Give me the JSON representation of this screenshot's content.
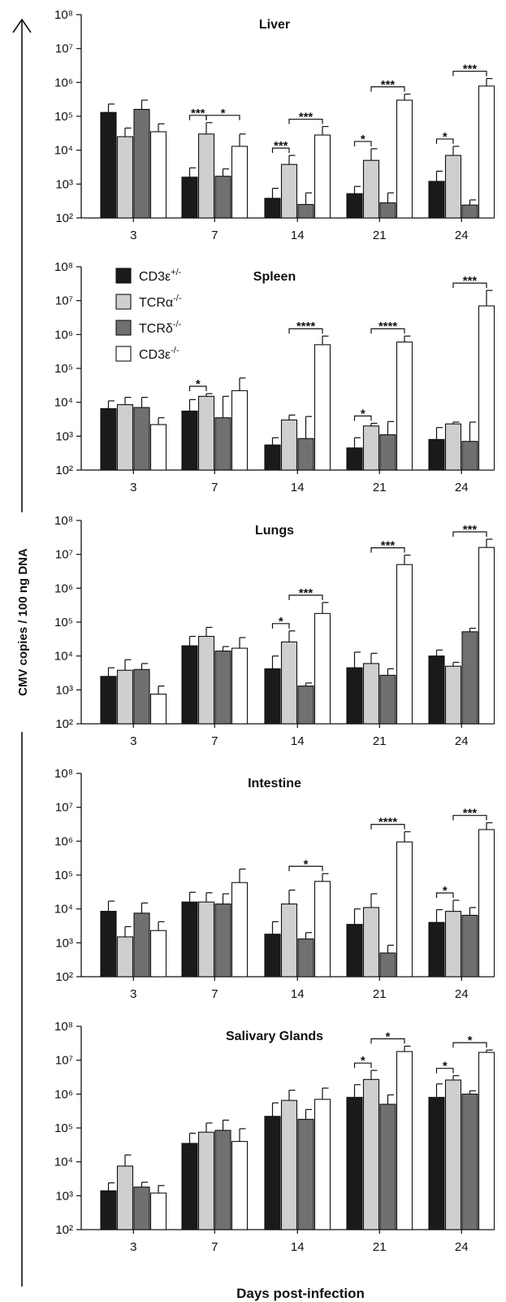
{
  "figure": {
    "ylabel": "CMV copies / 100 ng DNA",
    "xlabel": "Days post-infection"
  },
  "legend": [
    {
      "label": "CD3ε",
      "sup": "+/-",
      "color": "#1a1a1a"
    },
    {
      "label": "TCRα",
      "sup": "-/-",
      "color": "#cfcfcf"
    },
    {
      "label": "TCRδ",
      "sup": "-/-",
      "color": "#707070"
    },
    {
      "label": "CD3ε",
      "sup": "-/-",
      "color": "#ffffff"
    }
  ],
  "chart_data": [
    {
      "type": "bar",
      "title": "Liver",
      "log_scale": true,
      "ylim": [
        100,
        100000000
      ],
      "y_ticks": [
        "10²",
        "10³",
        "10⁴",
        "10⁵",
        "10⁶",
        "10⁷",
        "10⁸"
      ],
      "categories": [
        "3",
        "7",
        "14",
        "21",
        "24"
      ],
      "series": [
        {
          "name": "CD3ε+/-",
          "values": [
            130000,
            1600,
            380,
            520,
            1200
          ],
          "errors": [
            230000,
            3000,
            750,
            850,
            2400
          ]
        },
        {
          "name": "TCRα-/-",
          "values": [
            25000,
            30000,
            3800,
            5000,
            7000
          ],
          "errors": [
            45000,
            65000,
            7000,
            11000,
            13000
          ]
        },
        {
          "name": "TCRδ-/-",
          "values": [
            160000,
            1700,
            250,
            280,
            240
          ],
          "errors": [
            300000,
            2800,
            550,
            550,
            340
          ]
        },
        {
          "name": "CD3ε-/-",
          "values": [
            35000,
            13000,
            28000,
            300000,
            780000
          ],
          "errors": [
            60000,
            30000,
            50000,
            450000,
            1300000
          ]
        }
      ],
      "significance": [
        {
          "day": "7",
          "from": "CD3ε+/-",
          "to": "TCRα-/-",
          "label": "***"
        },
        {
          "day": "7",
          "from": "TCRα-/-",
          "to": "CD3ε-/-",
          "label": "*"
        },
        {
          "day": "14",
          "from": "CD3ε+/-",
          "to": "TCRα-/-",
          "label": "***"
        },
        {
          "day": "14",
          "from": "TCRα-/-",
          "to": "CD3ε-/-",
          "label": "***"
        },
        {
          "day": "21",
          "from": "CD3ε+/-",
          "to": "TCRα-/-",
          "label": "*"
        },
        {
          "day": "21",
          "from": "TCRα-/-",
          "to": "CD3ε-/-",
          "label": "***"
        },
        {
          "day": "24",
          "from": "CD3ε+/-",
          "to": "TCRα-/-",
          "label": "*"
        },
        {
          "day": "24",
          "from": "TCRα-/-",
          "to": "CD3ε-/-",
          "label": "***"
        }
      ]
    },
    {
      "type": "bar",
      "title": "Spleen",
      "log_scale": true,
      "ylim": [
        100,
        100000000
      ],
      "y_ticks": [
        "10²",
        "10³",
        "10⁴",
        "10⁵",
        "10⁶",
        "10⁷",
        "10⁸"
      ],
      "categories": [
        "3",
        "7",
        "14",
        "21",
        "24"
      ],
      "series": [
        {
          "name": "CD3ε+/-",
          "values": [
            6500,
            5500,
            550,
            450,
            800
          ],
          "errors": [
            11000,
            12000,
            900,
            900,
            1800
          ]
        },
        {
          "name": "TCRα-/-",
          "values": [
            8500,
            15000,
            3000,
            2000,
            2300
          ],
          "errors": [
            14000,
            18000,
            4200,
            2400,
            2600
          ]
        },
        {
          "name": "TCRδ-/-",
          "values": [
            7000,
            3500,
            850,
            1100,
            700
          ],
          "errors": [
            14000,
            15000,
            3800,
            2700,
            2600
          ]
        },
        {
          "name": "CD3ε-/-",
          "values": [
            2200,
            22000,
            500000,
            600000,
            7000000
          ],
          "errors": [
            3500,
            52000,
            900000,
            900000,
            20000000
          ]
        }
      ],
      "significance": [
        {
          "day": "7",
          "from": "CD3ε+/-",
          "to": "TCRα-/-",
          "label": "*"
        },
        {
          "day": "14",
          "from": "TCRα-/-",
          "to": "CD3ε-/-",
          "label": "****"
        },
        {
          "day": "21",
          "from": "CD3ε+/-",
          "to": "TCRα-/-",
          "label": "*"
        },
        {
          "day": "21",
          "from": "TCRα-/-",
          "to": "CD3ε-/-",
          "label": "****"
        },
        {
          "day": "24",
          "from": "TCRα-/-",
          "to": "CD3ε-/-",
          "label": "***"
        }
      ]
    },
    {
      "type": "bar",
      "title": "Lungs",
      "log_scale": true,
      "ylim": [
        100,
        100000000
      ],
      "y_ticks": [
        "10²",
        "10³",
        "10⁴",
        "10⁵",
        "10⁶",
        "10⁷",
        "10⁸"
      ],
      "categories": [
        "3",
        "7",
        "14",
        "21",
        "24"
      ],
      "series": [
        {
          "name": "CD3ε+/-",
          "values": [
            2500,
            20000,
            4200,
            4500,
            10000
          ],
          "errors": [
            4500,
            38000,
            10000,
            13000,
            15000
          ]
        },
        {
          "name": "TCRα-/-",
          "values": [
            3800,
            38000,
            26000,
            6000,
            5000
          ],
          "errors": [
            7800,
            70000,
            55000,
            12000,
            6500
          ]
        },
        {
          "name": "TCRδ-/-",
          "values": [
            4000,
            14000,
            1300,
            2700,
            52000
          ],
          "errors": [
            6000,
            19000,
            1600,
            4200,
            66000
          ]
        },
        {
          "name": "CD3ε-/-",
          "values": [
            750,
            17000,
            180000,
            5000000,
            16000000
          ],
          "errors": [
            1300,
            35000,
            380000,
            9500000,
            28000000
          ]
        }
      ],
      "significance": [
        {
          "day": "14",
          "from": "CD3ε+/-",
          "to": "TCRα-/-",
          "label": "*"
        },
        {
          "day": "14",
          "from": "TCRα-/-",
          "to": "CD3ε-/-",
          "label": "***"
        },
        {
          "day": "21",
          "from": "TCRα-/-",
          "to": "CD3ε-/-",
          "label": "***"
        },
        {
          "day": "24",
          "from": "TCRα-/-",
          "to": "CD3ε-/-",
          "label": "***"
        }
      ]
    },
    {
      "type": "bar",
      "title": "Intestine",
      "log_scale": true,
      "ylim": [
        100,
        100000000
      ],
      "y_ticks": [
        "10²",
        "10³",
        "10⁴",
        "10⁵",
        "10⁶",
        "10⁷",
        "10⁸"
      ],
      "categories": [
        "3",
        "7",
        "14",
        "21",
        "24"
      ],
      "series": [
        {
          "name": "CD3ε+/-",
          "values": [
            8500,
            16000,
            1800,
            3500,
            4000
          ],
          "errors": [
            17000,
            31000,
            4200,
            10000,
            9500
          ]
        },
        {
          "name": "TCRα-/-",
          "values": [
            1500,
            16000,
            14000,
            11000,
            8500
          ],
          "errors": [
            3000,
            30000,
            36000,
            28000,
            18000
          ]
        },
        {
          "name": "TCRδ-/-",
          "values": [
            7500,
            14000,
            1300,
            500,
            6500
          ],
          "errors": [
            15000,
            28000,
            2000,
            850,
            11000
          ]
        },
        {
          "name": "CD3ε-/-",
          "values": [
            2300,
            60000,
            65000,
            950000,
            2200000
          ],
          "errors": [
            4200,
            150000,
            110000,
            1900000,
            3500000
          ]
        }
      ],
      "significance": [
        {
          "day": "14",
          "from": "TCRα-/-",
          "to": "CD3ε-/-",
          "label": "*"
        },
        {
          "day": "21",
          "from": "TCRα-/-",
          "to": "CD3ε-/-",
          "label": "****"
        },
        {
          "day": "24",
          "from": "CD3ε+/-",
          "to": "TCRα-/-",
          "label": "*"
        },
        {
          "day": "24",
          "from": "TCRα-/-",
          "to": "CD3ε-/-",
          "label": "***"
        }
      ]
    },
    {
      "type": "bar",
      "title": "Salivary Glands",
      "log_scale": true,
      "ylim": [
        100,
        100000000
      ],
      "y_ticks": [
        "10²",
        "10³",
        "10⁴",
        "10⁵",
        "10⁶",
        "10⁷",
        "10⁸"
      ],
      "categories": [
        "3",
        "7",
        "14",
        "21",
        "24"
      ],
      "series": [
        {
          "name": "CD3ε+/-",
          "values": [
            1400,
            35000,
            220000,
            800000,
            800000
          ],
          "errors": [
            2400,
            70000,
            550000,
            1900000,
            2000000
          ]
        },
        {
          "name": "TCRα-/-",
          "values": [
            7500,
            75000,
            650000,
            2700000,
            2600000
          ],
          "errors": [
            16000,
            140000,
            1300000,
            5000000,
            3500000
          ]
        },
        {
          "name": "TCRδ-/-",
          "values": [
            1800,
            85000,
            180000,
            500000,
            1000000
          ],
          "errors": [
            2500,
            170000,
            350000,
            950000,
            1250000
          ]
        },
        {
          "name": "CD3ε-/-",
          "values": [
            1200,
            40000,
            700000,
            18000000,
            17000000
          ],
          "errors": [
            2000,
            95000,
            1500000,
            26000000,
            20000000
          ]
        }
      ],
      "significance": [
        {
          "day": "21",
          "from": "CD3ε+/-",
          "to": "TCRα-/-",
          "label": "*"
        },
        {
          "day": "21",
          "from": "TCRα-/-",
          "to": "CD3ε-/-",
          "label": "*"
        },
        {
          "day": "24",
          "from": "CD3ε+/-",
          "to": "TCRα-/-",
          "label": "*"
        },
        {
          "day": "24",
          "from": "TCRα-/-",
          "to": "CD3ε-/-",
          "label": "*"
        }
      ]
    }
  ]
}
